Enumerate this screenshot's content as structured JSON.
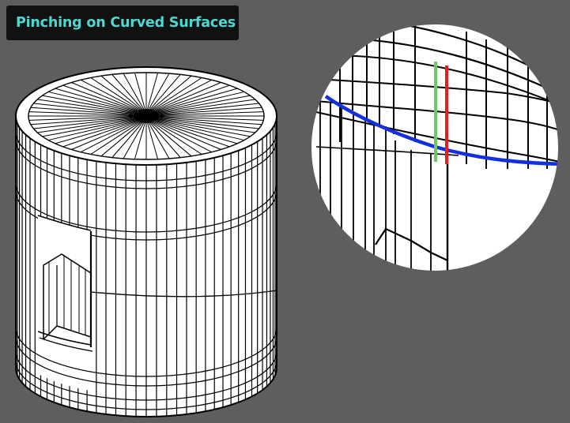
{
  "title": "Pinching on Curved Surfaces",
  "colors": {
    "background": "#5e5e5e",
    "title_box": "#111111",
    "title_text": "#4fd8d2",
    "mesh_fill": "#ffffff",
    "mesh_edge": "#000000",
    "edge_loop_highlight": "#1230e0",
    "edge_green": "#6cc864",
    "edge_red": "#e81c1c"
  },
  "illustration": {
    "main_subject": "cylinder-mesh-with-inset-panel",
    "inset_subject": "zoomed-detail-circle"
  }
}
